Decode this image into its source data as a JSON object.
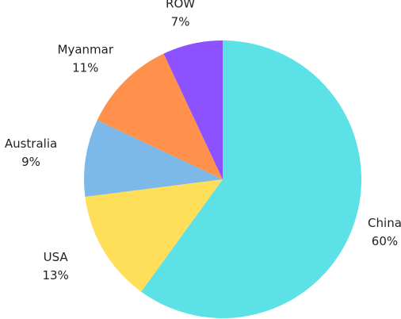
{
  "chart_data": {
    "type": "pie",
    "categories": [
      "China",
      "USA",
      "Australia",
      "Myanmar",
      "ROW"
    ],
    "values": [
      60,
      13,
      9,
      11,
      7
    ],
    "value_labels": [
      "60%",
      "13%",
      "9%",
      "11%",
      "7%"
    ],
    "colors": [
      "#5ce1e6",
      "#ffde59",
      "#7cb9e8",
      "#ff914d",
      "#8c52ff"
    ]
  }
}
